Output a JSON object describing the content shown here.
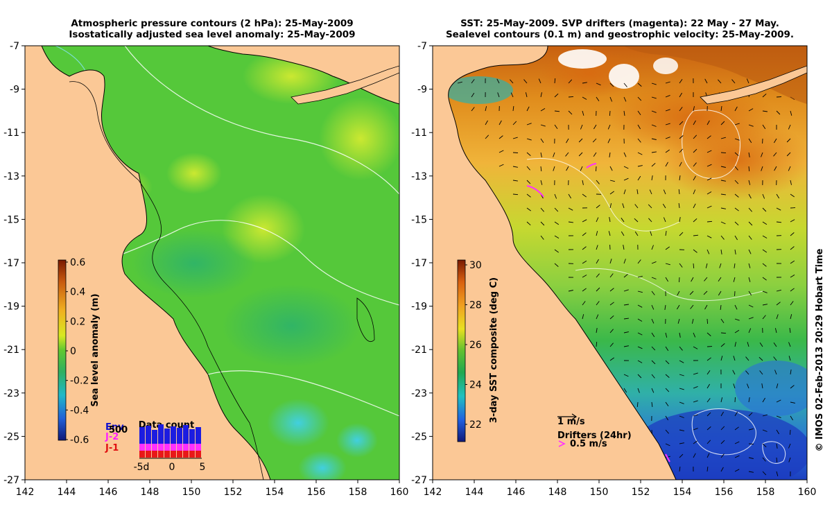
{
  "left_panel": {
    "title_line1": "Atmospheric pressure contours (2 hPa): 25-May-2009",
    "title_line2": "Isostatically adjusted sea level anomaly: 25-May-2009",
    "colorbar": {
      "label": "Sea level anomaly (m)",
      "ticks": [
        "0.6",
        "0.4",
        "0.2",
        "0",
        "-0.2",
        "-0.4",
        "-0.6"
      ],
      "range": [
        -0.6,
        0.6
      ]
    },
    "data_count": {
      "title": "Data count",
      "legend": [
        "Env",
        "500",
        "J-2",
        "J-1"
      ],
      "xticks": [
        "-5d",
        "0",
        "5"
      ]
    }
  },
  "right_panel": {
    "title_line1": "SST: 25-May-2009. SVP drifters (magenta): 22 May - 27 May.",
    "title_line2": "Sealevel contours (0.1 m) and geostrophic velocity: 25-May-2009.",
    "colorbar": {
      "label": "3-day SST composite (deg C)",
      "ticks": [
        "30",
        "28",
        "26",
        "24",
        "22"
      ],
      "range": [
        21,
        30.5
      ]
    },
    "velocity_scale_label": "1 m/s",
    "drifters_label": "Drifters (24hr)",
    "drifters_scale_label": "0.5 m/s"
  },
  "axes": {
    "x_ticks": [
      "142",
      "144",
      "146",
      "148",
      "150",
      "152",
      "154",
      "156",
      "158",
      "160"
    ],
    "y_ticks": [
      "-7",
      "-9",
      "-11",
      "-13",
      "-15",
      "-17",
      "-19",
      "-21",
      "-23",
      "-25",
      "-27"
    ],
    "lon_range": [
      142,
      160
    ],
    "lat_range": [
      -27,
      -7
    ]
  },
  "credit": "© IMOS 02-Feb-2013 20:29 Hobart Time",
  "colors": {
    "land": "#fbc896",
    "sla_base": "#55c83a",
    "sst_warm": "#e89020",
    "sst_mid": "#2fb040",
    "sst_cool": "#1f60d0"
  }
}
